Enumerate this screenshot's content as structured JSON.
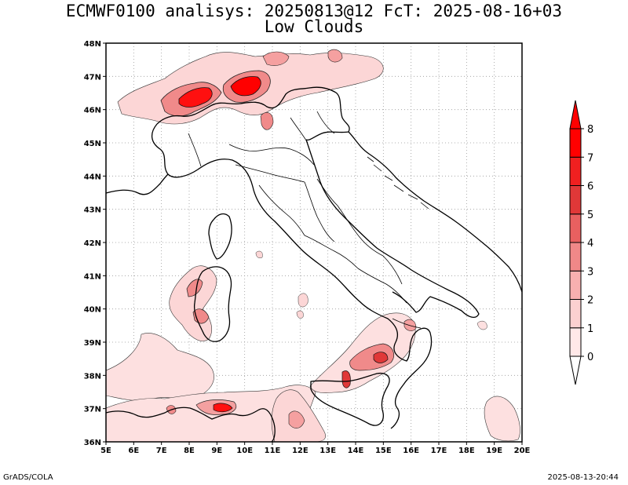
{
  "title": {
    "line1": "ECMWF0100 analisys: 20250813@12 FcT: 2025-08-16+03",
    "line2": "Low Clouds"
  },
  "map": {
    "lon_range": [
      5,
      20
    ],
    "lat_range": [
      36,
      48
    ],
    "lon_ticks": [
      "5E",
      "6E",
      "7E",
      "8E",
      "9E",
      "10E",
      "11E",
      "12E",
      "13E",
      "14E",
      "15E",
      "16E",
      "17E",
      "18E",
      "19E",
      "20E"
    ],
    "lat_ticks": [
      "36N",
      "37N",
      "38N",
      "39N",
      "40N",
      "41N",
      "42N",
      "43N",
      "44N",
      "45N",
      "46N",
      "47N",
      "48N"
    ],
    "grid": true,
    "land_color": "#ffffff",
    "boundary_color": "#000000"
  },
  "colorbar": {
    "levels": [
      "0",
      "1",
      "2",
      "3",
      "4",
      "5",
      "6",
      "7",
      "8"
    ],
    "colors": [
      "#ffe8e8",
      "#fcd0d0",
      "#f8b0b0",
      "#f08888",
      "#e86060",
      "#e03838",
      "#f02020",
      "#ff0000"
    ],
    "arrow_top_color": "#ff0000",
    "arrow_bottom_color": "#ffffff"
  },
  "footer": {
    "left": "GrADS/COLA",
    "right": "2025-08-13-20:44"
  }
}
